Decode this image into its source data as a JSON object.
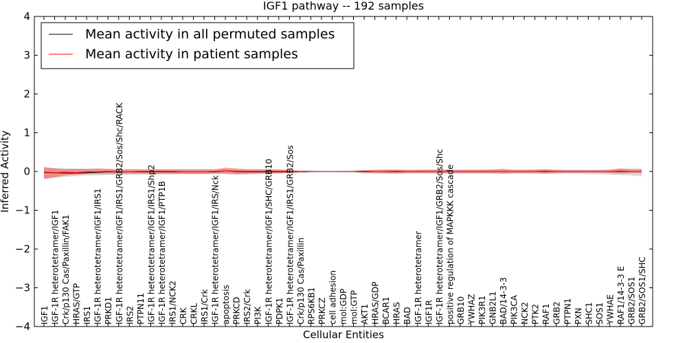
{
  "chart_data": {
    "type": "line",
    "title": "IGF1 pathway -- 192 samples",
    "xlabel": "Cellular Entities",
    "ylabel": "Inferred Activity",
    "ylim": [
      -4,
      4
    ],
    "yticks": [
      -4,
      -3,
      -2,
      -1,
      0,
      1,
      2,
      3,
      4
    ],
    "ytick_labels": [
      "−4",
      "−3",
      "−2",
      "−1",
      "0",
      "1",
      "2",
      "3",
      "4"
    ],
    "grid": false,
    "legend_position": "top-left",
    "categories": [
      "IGF1",
      "IGF-1R heterotetramer/IGF1",
      "Crk/p130 Cas/Paxillin/FAK1",
      "HRAS/GTP",
      "IRS1",
      "IGF-1R heterotetramer/IGF1/IRS1",
      "PRKD1",
      "IGF-1R heterotetramer/IGF1/IRS1/GRB2/Sos/Shc/RACK",
      "IRS2",
      "PTPN11",
      "IGF-1R heterotetramer/IGF1/IRS1/Shp2",
      "IGF-1R heterotetramer/IGF1/PTP1B",
      "IRS1/NCK2",
      "CRK",
      "CRKL",
      "IRS1/Crk",
      "IGF-1R heterotetramer/IGF1/IRS/Nck",
      "apoptosis",
      "PRKCD",
      "IRS2/Crk",
      "PI3K",
      "IGF-1R heterotetramer/IGF1/SHC/GRB10",
      "PDPK1",
      "IGF-1R heterotetramer/IGF1/IRS1/GRB2/Sos",
      "Crk/p130 Cas/Paxillin",
      "RPS6KB1",
      "PRKCZ",
      "cell adhesion",
      "mol:GDP",
      "mol:GTP",
      "AKT1",
      "HRAS/GDP",
      "BCAR1",
      "HRAS",
      "BAD",
      "IGF-1R heterotetramer",
      "IGF1R",
      "IGF-1R heterotetramer/IGF1/GRB2/Sos/Shc",
      "positive regulation of MAPKKK cascade",
      "GRB10",
      "YWHAZ",
      "PIK3R1",
      "GNB2L1",
      "BAD/14-3-3",
      "PIK3CA",
      "NCK2",
      "PTK2",
      "RAF1",
      "GRB2",
      "PTPN1",
      "PXN",
      "SHC1",
      "SOS1",
      "YWHAE",
      "RAF1/14-3-3 E",
      "GRB2/SOS1",
      "GRB2/SOS1/SHC"
    ],
    "series": [
      {
        "name": "Mean activity in all permuted samples",
        "color": "#000000",
        "values": [
          -0.02,
          -0.03,
          -0.04,
          -0.04,
          -0.03,
          -0.02,
          -0.01,
          -0.01,
          -0.01,
          -0.01,
          -0.01,
          -0.01,
          -0.01,
          -0.01,
          -0.01,
          -0.01,
          -0.01,
          0.02,
          0,
          -0.01,
          -0.01,
          -0.01,
          -0.01,
          -0.01,
          -0.01,
          0,
          0,
          0,
          0,
          0,
          0,
          0,
          0,
          0,
          0,
          0,
          0,
          0,
          0,
          0,
          0,
          0,
          0,
          0,
          0,
          0,
          0,
          0,
          0,
          0,
          0,
          0,
          0,
          0,
          0,
          0,
          0
        ],
        "band_lower": [
          -0.18,
          -0.16,
          -0.14,
          -0.12,
          -0.1,
          -0.1,
          -0.09,
          -0.08,
          -0.08,
          -0.08,
          -0.07,
          -0.07,
          -0.07,
          -0.07,
          -0.07,
          -0.07,
          -0.06,
          -0.06,
          -0.06,
          -0.06,
          -0.06,
          -0.05,
          -0.05,
          -0.04,
          -0.03,
          -0.03,
          -0.02,
          -0.02,
          -0.03,
          -0.03,
          -0.05,
          -0.05,
          -0.05,
          -0.05,
          -0.05,
          -0.05,
          -0.05,
          -0.06,
          -0.06,
          -0.06,
          -0.06,
          -0.06,
          -0.06,
          -0.06,
          -0.06,
          -0.06,
          -0.06,
          -0.06,
          -0.06,
          -0.06,
          -0.06,
          -0.07,
          -0.07,
          -0.08,
          -0.09,
          -0.1,
          -0.12
        ],
        "band_upper": [
          0.1,
          0.09,
          0.08,
          0.07,
          0.06,
          0.06,
          0.06,
          0.05,
          0.05,
          0.05,
          0.05,
          0.05,
          0.05,
          0.05,
          0.05,
          0.05,
          0.05,
          0.06,
          0.05,
          0.05,
          0.05,
          0.05,
          0.05,
          0.04,
          0.03,
          0.03,
          0.02,
          0.02,
          0.02,
          0.03,
          0.04,
          0.04,
          0.04,
          0.04,
          0.04,
          0.05,
          0.05,
          0.05,
          0.05,
          0.05,
          0.05,
          0.05,
          0.05,
          0.05,
          0.05,
          0.05,
          0.05,
          0.05,
          0.05,
          0.05,
          0.05,
          0.05,
          0.05,
          0.06,
          0.07,
          0.08,
          0.08
        ]
      },
      {
        "name": "Mean activity in patient samples",
        "color": "#ff0000",
        "values": [
          -0.03,
          -0.03,
          -0.02,
          -0.03,
          -0.01,
          -0.01,
          0,
          -0.01,
          -0.01,
          0,
          0,
          0,
          0,
          -0.01,
          -0.01,
          -0.01,
          0,
          0.02,
          0.01,
          0,
          0,
          0,
          0,
          0,
          -0.01,
          0,
          0,
          0,
          0,
          0,
          0.01,
          0,
          0,
          0.01,
          0,
          0,
          0,
          0,
          0,
          0,
          0,
          0,
          0,
          0,
          0,
          0,
          0,
          0.01,
          0,
          0,
          0,
          0,
          0,
          0,
          0.01,
          0,
          0
        ],
        "band_lower": [
          -0.2,
          -0.15,
          -0.1,
          -0.08,
          -0.07,
          -0.06,
          -0.06,
          -0.06,
          -0.06,
          -0.06,
          -0.06,
          -0.06,
          -0.06,
          -0.06,
          -0.06,
          -0.06,
          -0.06,
          -0.06,
          -0.08,
          -0.07,
          -0.06,
          -0.05,
          -0.05,
          -0.03,
          -0.02,
          -0.01,
          -0.01,
          -0.005,
          -0.005,
          -0.01,
          -0.03,
          -0.04,
          -0.05,
          -0.05,
          -0.04,
          -0.04,
          -0.04,
          -0.04,
          -0.04,
          -0.04,
          -0.04,
          -0.04,
          -0.04,
          -0.05,
          -0.04,
          -0.04,
          -0.04,
          -0.05,
          -0.04,
          -0.03,
          -0.03,
          -0.03,
          -0.03,
          -0.04,
          -0.05,
          -0.04,
          -0.04
        ],
        "band_upper": [
          0.12,
          0.08,
          0.06,
          0.07,
          0.07,
          0.08,
          0.07,
          0.06,
          0.06,
          0.06,
          0.06,
          0.06,
          0.06,
          0.06,
          0.06,
          0.06,
          0.06,
          0.1,
          0.08,
          0.06,
          0.06,
          0.06,
          0.05,
          0.04,
          0.02,
          0.01,
          0.01,
          0.005,
          0.005,
          0.01,
          0.03,
          0.04,
          0.05,
          0.05,
          0.04,
          0.04,
          0.04,
          0.05,
          0.04,
          0.04,
          0.04,
          0.04,
          0.05,
          0.07,
          0.04,
          0.04,
          0.05,
          0.06,
          0.04,
          0.03,
          0.03,
          0.03,
          0.03,
          0.04,
          0.08,
          0.05,
          0.05
        ]
      }
    ]
  }
}
